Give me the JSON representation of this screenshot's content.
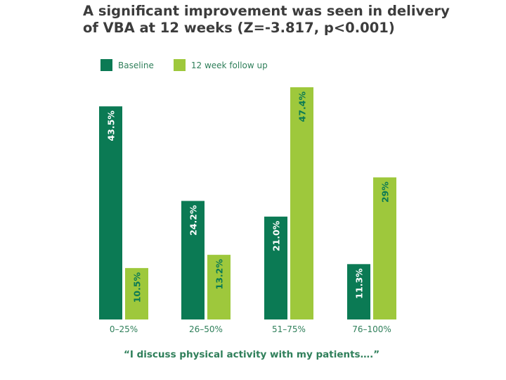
{
  "title_lines": [
    "A significant improvement was seen in delivery",
    "of VBA at 12 weeks (Z=-3.817, p<0.001)"
  ],
  "colors": {
    "baseline": "#0b7a54",
    "followup": "#9ec83c",
    "axis_text": "#2f7f5a",
    "title": "#3c3c3c"
  },
  "chart_data": {
    "type": "bar",
    "title": "A significant improvement was seen in delivery of VBA at 12 weeks (Z=-3.817, p<0.001)",
    "xlabel": "“I discuss physical activity with my patients….”",
    "ylabel": "",
    "categories": [
      "0–25%",
      "26–50%",
      "51–75%",
      "76–100%"
    ],
    "series": [
      {
        "name": "Baseline",
        "values": [
          43.5,
          24.2,
          21.0,
          11.3
        ],
        "labels": [
          "43.5%",
          "24.2%",
          "21.0%",
          "11.3%"
        ]
      },
      {
        "name": "12 week follow up",
        "values": [
          10.5,
          13.2,
          47.4,
          29.0
        ],
        "labels": [
          "10.5%",
          "13.2%",
          "47.4%",
          "29%"
        ]
      }
    ],
    "ylim": [
      0,
      50
    ],
    "grid": false,
    "legend": "top-left"
  }
}
